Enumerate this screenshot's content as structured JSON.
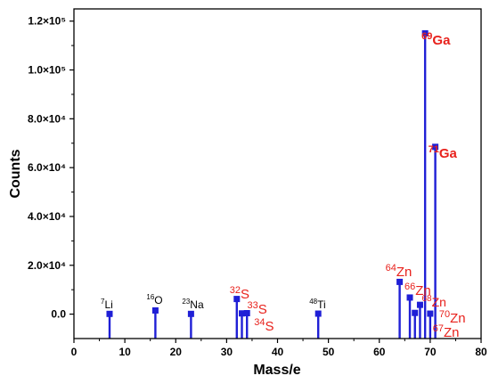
{
  "chart_data": {
    "type": "stem",
    "title": "",
    "xlabel": "Mass/e",
    "ylabel": "Counts",
    "xlim": [
      0,
      80
    ],
    "ylim": [
      -10000,
      125000
    ],
    "xticks": [
      0,
      10,
      20,
      30,
      40,
      50,
      60,
      70,
      80
    ],
    "yticks": [
      {
        "value": 0,
        "label": "0.0"
      },
      {
        "value": 20000,
        "label": "2.0×10⁴"
      },
      {
        "value": 40000,
        "label": "4.0×10⁴"
      },
      {
        "value": 60000,
        "label": "6.0×10⁴"
      },
      {
        "value": 80000,
        "label": "8.0×10⁴"
      },
      {
        "value": 100000,
        "label": "1.0×10⁵"
      },
      {
        "value": 120000,
        "label": "1.2×10⁵"
      }
    ],
    "series_color": "#1f1fd6",
    "label_colors": {
      "black": "#000000",
      "red": "#e8211c"
    },
    "points": [
      {
        "x": 7,
        "y": 100,
        "mass": "7",
        "element": "Li",
        "color": "black"
      },
      {
        "x": 16,
        "y": 1500,
        "mass": "16",
        "element": "O",
        "color": "black"
      },
      {
        "x": 23,
        "y": 100,
        "mass": "23",
        "element": "Na",
        "color": "black"
      },
      {
        "x": 32,
        "y": 6200,
        "mass": "32",
        "element": "S",
        "color": "red"
      },
      {
        "x": 33,
        "y": 300,
        "mass": "33",
        "element": "S",
        "color": "red"
      },
      {
        "x": 34,
        "y": 400,
        "mass": "34",
        "element": "S",
        "color": "red"
      },
      {
        "x": 48,
        "y": 200,
        "mass": "48",
        "element": "Ti",
        "color": "black"
      },
      {
        "x": 64,
        "y": 13200,
        "mass": "64",
        "element": "Zn",
        "color": "red"
      },
      {
        "x": 66,
        "y": 6800,
        "mass": "66",
        "element": "Zn",
        "color": "red"
      },
      {
        "x": 67,
        "y": 500,
        "mass": "67",
        "element": "Zn",
        "color": "red"
      },
      {
        "x": 68,
        "y": 3800,
        "mass": "68",
        "element": "Zn",
        "color": "red"
      },
      {
        "x": 69,
        "y": 115000,
        "mass": "69",
        "element": "Ga",
        "color": "red"
      },
      {
        "x": 70,
        "y": 200,
        "mass": "70",
        "element": "Zn",
        "color": "red"
      },
      {
        "x": 71,
        "y": 68500,
        "mass": "71",
        "element": "Ga",
        "color": "red"
      }
    ]
  }
}
